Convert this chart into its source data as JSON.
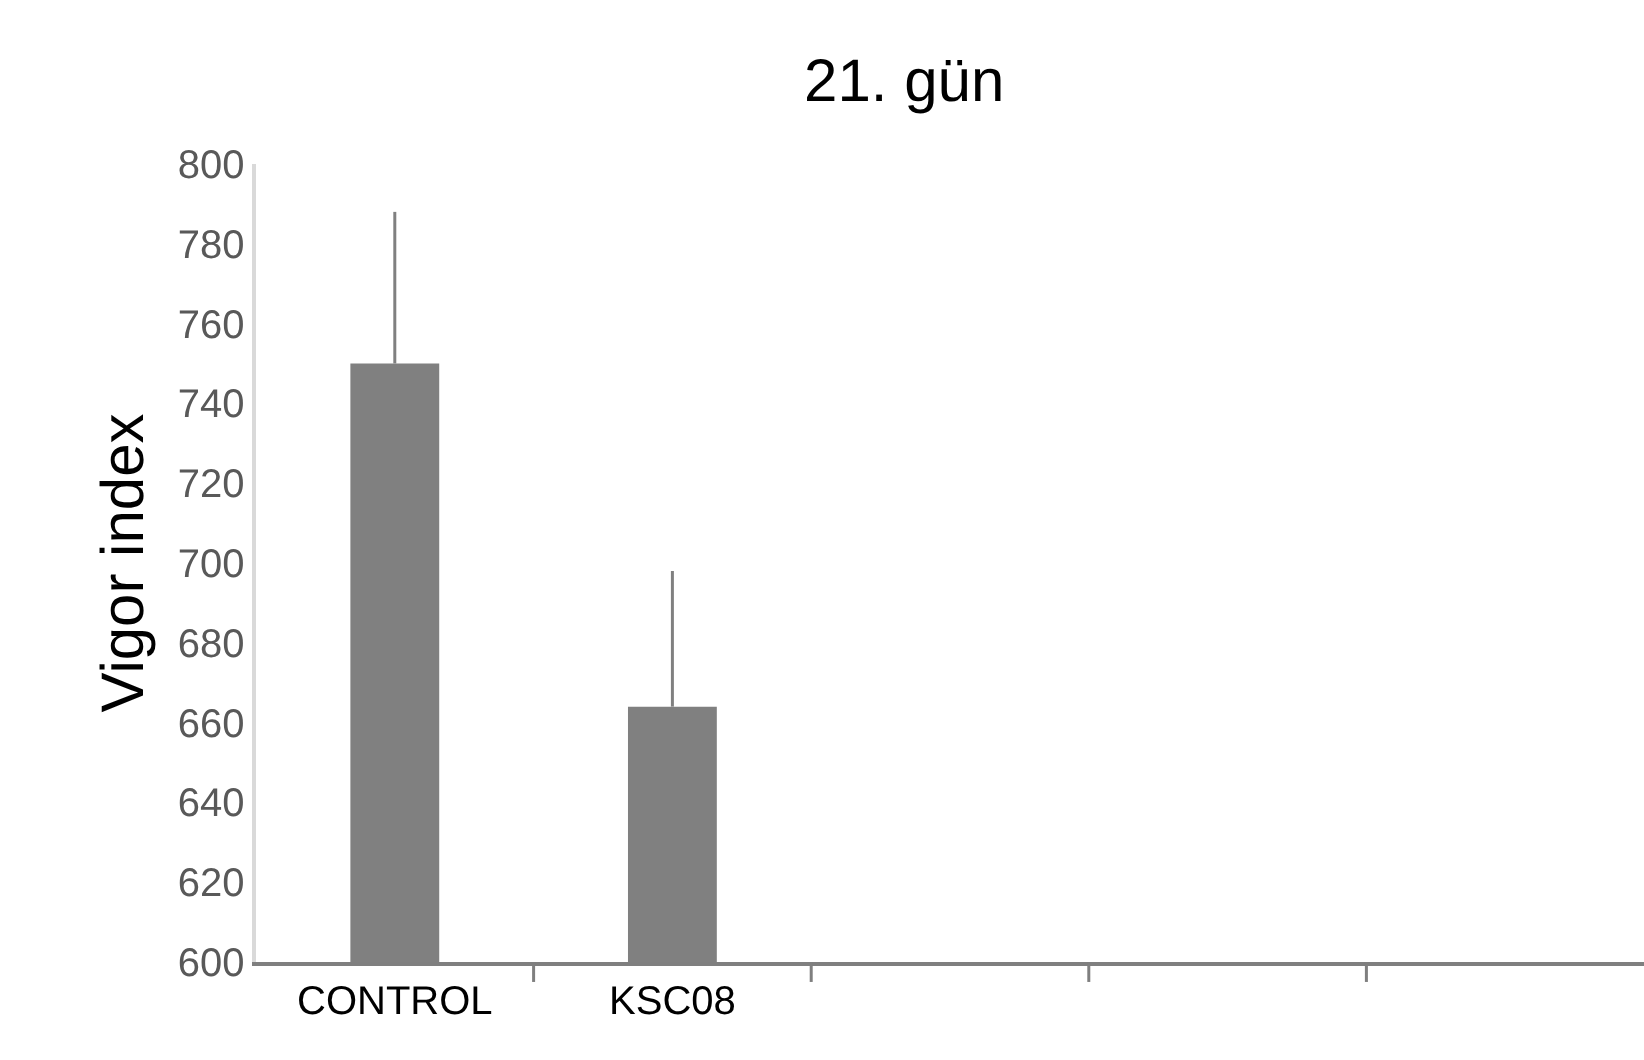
{
  "chart_data": {
    "type": "bar",
    "title": "21. gün",
    "ylabel": "Vigor index",
    "categories": [
      "CONTROL",
      "KSC08",
      null,
      null,
      null
    ],
    "values": [
      750,
      664,
      null,
      null,
      null
    ],
    "errors": [
      [
        750,
        788
      ],
      [
        664,
        698
      ],
      null,
      null,
      null
    ],
    "color": "#808080",
    "ylim": [
      600,
      800
    ],
    "yticks": [
      600,
      620,
      640,
      660,
      680,
      700,
      720,
      740,
      760,
      780,
      800
    ],
    "grid": false,
    "legend": false
  }
}
